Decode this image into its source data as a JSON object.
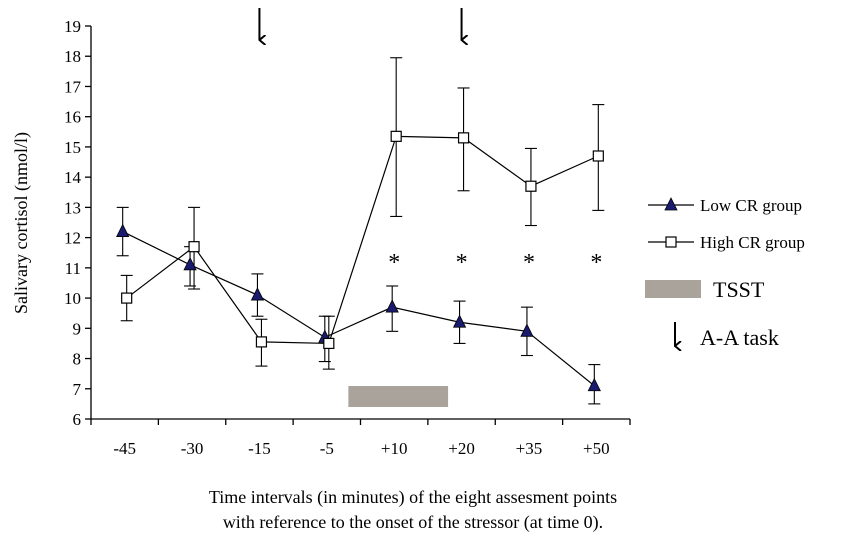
{
  "chart_data": {
    "type": "line",
    "title": "",
    "xlabel_line1": "Time intervals (in minutes) of the eight assesment points",
    "xlabel_line2": "with reference to the onset of the stressor (at time 0).",
    "ylabel": "Salivary cortisol (nmol/l)",
    "ylim": [
      6,
      19
    ],
    "yticks": [
      6,
      7,
      8,
      9,
      10,
      11,
      12,
      13,
      14,
      15,
      16,
      17,
      18,
      19
    ],
    "categories": [
      "-45",
      "-30",
      "-15",
      "-5",
      "+10",
      "+20",
      "+35",
      "+50"
    ],
    "series": [
      {
        "name": "Low CR group",
        "marker": "triangle-filled",
        "color": "#1a1a6e",
        "values": [
          12.2,
          11.1,
          10.1,
          8.7,
          9.7,
          9.2,
          8.9,
          7.1
        ],
        "err_upper": [
          13.0,
          11.7,
          10.8,
          9.4,
          10.4,
          9.9,
          9.7,
          7.8
        ],
        "err_lower": [
          11.4,
          10.4,
          9.4,
          7.9,
          8.9,
          8.5,
          8.1,
          6.5
        ]
      },
      {
        "name": "High CR group",
        "marker": "square-open",
        "color": "#000000",
        "values": [
          10.0,
          11.7,
          8.55,
          8.5,
          15.35,
          15.3,
          13.7,
          14.7
        ],
        "err_upper": [
          10.75,
          13.0,
          9.3,
          9.4,
          17.95,
          16.95,
          14.95,
          16.4
        ],
        "err_lower": [
          9.25,
          10.3,
          7.75,
          7.65,
          12.7,
          13.55,
          12.4,
          12.9
        ]
      }
    ],
    "significance": {
      "symbol": "*",
      "categories": [
        "+10",
        "+20",
        "+35",
        "+50"
      ]
    },
    "tsst_bar": {
      "label": "TSST",
      "from_category": "-5",
      "to_category": "+20",
      "color": "#a9a39c"
    },
    "aa_task": {
      "label": "A-A task",
      "categories": [
        "-15",
        "+20"
      ]
    },
    "legend_placement": "right",
    "grid": false
  }
}
